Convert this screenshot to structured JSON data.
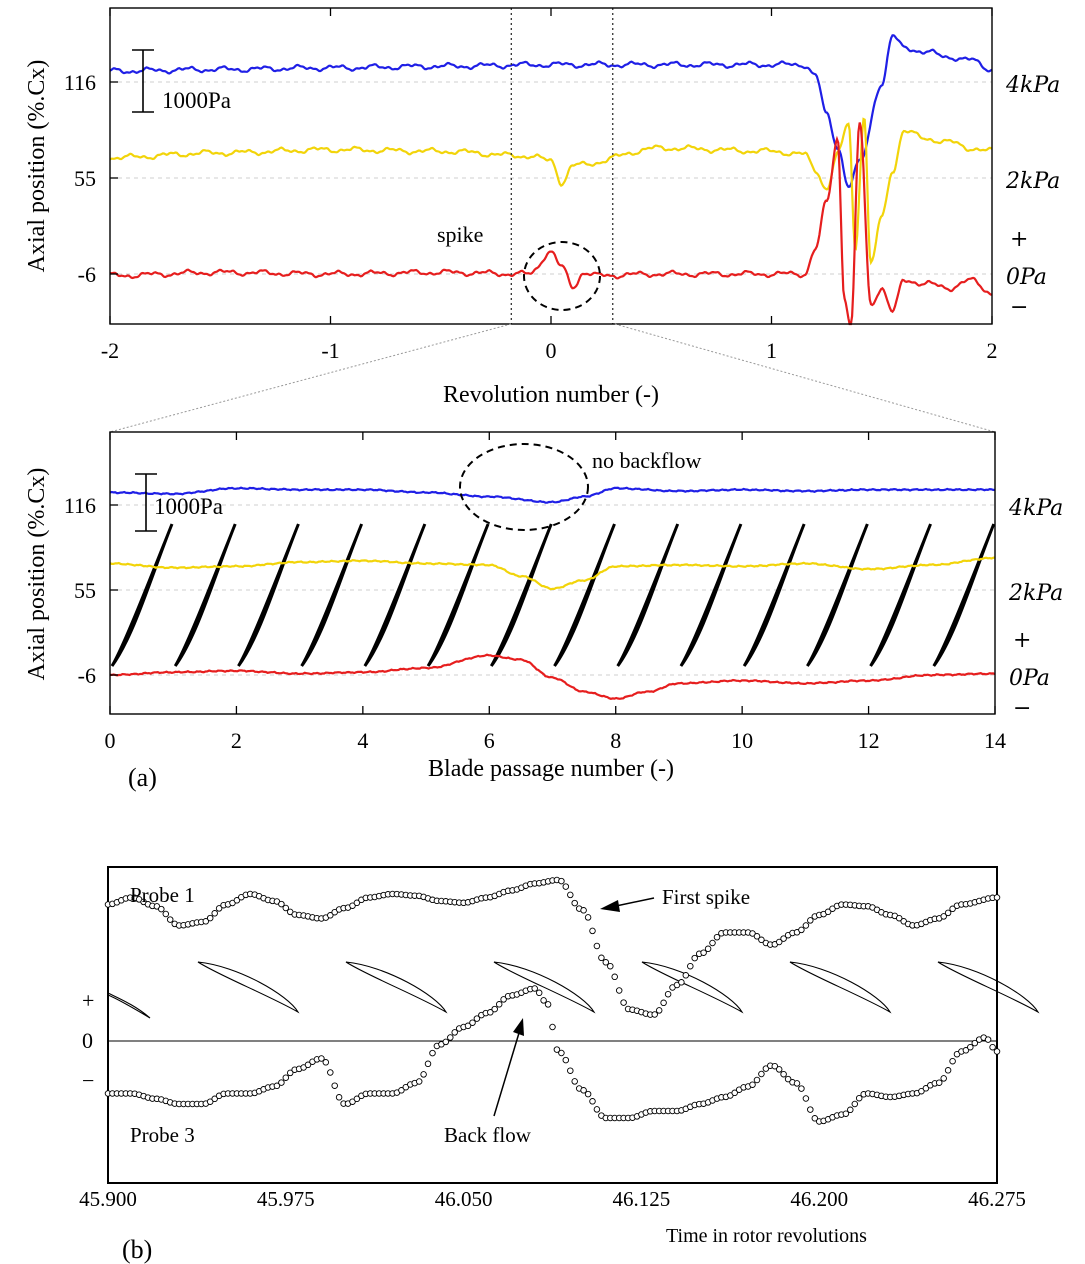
{
  "chart_data": [
    {
      "type": "line",
      "panel": "a-top",
      "xlabel": "Revolution number (-)",
      "ylabel": "Axial position (%.Cx)",
      "x_ticks": [
        "-2",
        "-1",
        "0",
        "1",
        "2"
      ],
      "xlim": [
        -2,
        2
      ],
      "y_ticks": [
        "116",
        "55",
        "-6"
      ],
      "y_tick_values": [
        116,
        55,
        -6
      ],
      "right_labels": [
        "4kPa",
        "2kPa",
        "+",
        "0Pa",
        "−"
      ],
      "scale_bar_label": "1000Pa",
      "dashed_lines_x": [
        -0.18,
        0.28
      ],
      "annotation": "spike",
      "series": [
        {
          "color": "#1f1fe6",
          "baseline": 116,
          "x": [
            -2,
            -1.5,
            -1,
            -0.5,
            0,
            0.5,
            1,
            1.15,
            1.2,
            1.25,
            1.3,
            1.35,
            1.4,
            1.5,
            1.55,
            1.6,
            1.7,
            1.8,
            1.9,
            2
          ],
          "y": [
            123,
            124,
            125,
            126,
            127,
            127,
            127,
            127,
            120,
            95,
            75,
            50,
            65,
            115,
            145,
            138,
            135,
            132,
            130,
            124
          ]
        },
        {
          "color": "#f2d40a",
          "baseline": 55,
          "x": [
            -2,
            -1.5,
            -1,
            -0.5,
            -0.1,
            0,
            0.05,
            0.1,
            0.5,
            1,
            1.15,
            1.2,
            1.25,
            1.3,
            1.35,
            1.38,
            1.42,
            1.45,
            1.5,
            1.55,
            1.6,
            1.7,
            1.8,
            1.9,
            2
          ],
          "y": [
            68,
            71,
            73,
            72,
            69,
            66,
            52,
            63,
            74,
            72,
            70,
            60,
            48,
            70,
            90,
            10,
            95,
            0,
            30,
            60,
            85,
            80,
            78,
            74,
            72
          ]
        },
        {
          "color": "#e61e1e",
          "baseline": -6,
          "x": [
            -2,
            -1.5,
            -1,
            -0.5,
            -0.1,
            0.0,
            0.05,
            0.1,
            0.15,
            0.2,
            0.5,
            1,
            1.15,
            1.2,
            1.25,
            1.3,
            1.33,
            1.36,
            1.4,
            1.45,
            1.5,
            1.55,
            1.6,
            1.7,
            1.8,
            1.9,
            2
          ],
          "y": [
            -7,
            -5,
            -6,
            -5,
            -6,
            8,
            -2,
            -14,
            -5,
            -7,
            -6,
            -6,
            -6,
            10,
            40,
            80,
            -20,
            -40,
            90,
            -25,
            -15,
            -30,
            -10,
            -12,
            -15,
            -10,
            -18
          ]
        }
      ]
    },
    {
      "type": "line",
      "panel": "a-bottom",
      "xlabel": "Blade passage number (-)",
      "ylabel": "Axial position (%.Cx)",
      "x_ticks": [
        "0",
        "2",
        "4",
        "6",
        "8",
        "10",
        "12",
        "14"
      ],
      "xlim": [
        0,
        14
      ],
      "y_ticks": [
        "116",
        "55",
        "-6"
      ],
      "y_tick_values": [
        116,
        55,
        -6
      ],
      "right_labels": [
        "4kPa",
        "2kPa",
        "+",
        "0Pa",
        "−"
      ],
      "scale_bar_label": "1000Pa",
      "annotation": "no backflow",
      "panel_label": "(a)",
      "series": [
        {
          "color": "#1f1fe6",
          "baseline": 116,
          "x": [
            0,
            1,
            2,
            3,
            4,
            5,
            6,
            7,
            7.5,
            8,
            9,
            10,
            11,
            12,
            13,
            14
          ],
          "y": [
            125,
            124,
            128,
            127,
            127,
            125,
            122,
            118,
            122,
            128,
            126,
            127,
            126,
            127,
            127,
            127
          ]
        },
        {
          "color": "#f2d40a",
          "baseline": 55,
          "x": [
            0,
            1,
            2,
            3,
            4,
            5,
            6,
            6.5,
            7,
            7.5,
            8,
            9,
            10,
            11,
            12,
            13,
            14
          ],
          "y": [
            74,
            71,
            72,
            75,
            76,
            74,
            73,
            65,
            56,
            62,
            72,
            73,
            72,
            74,
            70,
            73,
            78
          ]
        },
        {
          "color": "#e61e1e",
          "baseline": -6,
          "x": [
            0,
            1,
            2,
            3,
            4,
            5,
            6,
            6.5,
            7,
            7.5,
            8,
            8.5,
            9,
            10,
            11,
            12,
            13,
            14
          ],
          "y": [
            -6,
            -4,
            -3,
            -5,
            -4,
            -1,
            8,
            5,
            -8,
            -18,
            -23,
            -18,
            -12,
            -10,
            -12,
            -10,
            -6,
            -5
          ]
        }
      ]
    },
    {
      "type": "scatter",
      "panel": "b",
      "xlabel": "Time in rotor revolutions",
      "x_ticks": [
        "45.900",
        "45.975",
        "46.050",
        "46.125",
        "46.200",
        "46.275"
      ],
      "xlim": [
        45.9,
        46.275
      ],
      "y_labels": [
        "+",
        "0",
        "−"
      ],
      "panel_label": "(b)",
      "annotations": [
        "First spike",
        "Back flow"
      ],
      "series": [
        {
          "name": "Probe 1",
          "x": [
            45.9,
            45.91,
            45.92,
            45.93,
            45.94,
            45.95,
            45.96,
            45.97,
            45.98,
            45.99,
            46.0,
            46.01,
            46.02,
            46.03,
            46.04,
            46.05,
            46.06,
            46.07,
            46.08,
            46.09,
            46.1,
            46.11,
            46.12,
            46.13,
            46.14,
            46.15,
            46.16,
            46.17,
            46.18,
            46.19,
            46.2,
            46.21,
            46.22,
            46.23,
            46.24,
            46.25,
            46.26,
            46.275
          ],
          "y": [
            0.78,
            0.82,
            0.77,
            0.66,
            0.68,
            0.78,
            0.84,
            0.8,
            0.72,
            0.7,
            0.76,
            0.82,
            0.84,
            0.83,
            0.8,
            0.79,
            0.82,
            0.86,
            0.9,
            0.92,
            0.75,
            0.45,
            0.18,
            0.15,
            0.32,
            0.5,
            0.62,
            0.62,
            0.55,
            0.62,
            0.72,
            0.78,
            0.77,
            0.72,
            0.66,
            0.7,
            0.78,
            0.82
          ]
        },
        {
          "name": "Probe 3",
          "x": [
            45.9,
            45.91,
            45.92,
            45.93,
            45.94,
            45.95,
            45.96,
            45.97,
            45.98,
            45.99,
            46.0,
            46.01,
            46.02,
            46.03,
            46.04,
            46.05,
            46.06,
            46.07,
            46.08,
            46.085,
            46.09,
            46.1,
            46.11,
            46.12,
            46.13,
            46.14,
            46.15,
            46.16,
            46.17,
            46.18,
            46.19,
            46.2,
            46.21,
            46.22,
            46.23,
            46.24,
            46.25,
            46.26,
            46.27,
            46.275
          ],
          "y": [
            -0.3,
            -0.3,
            -0.33,
            -0.36,
            -0.36,
            -0.3,
            -0.3,
            -0.26,
            -0.16,
            -0.1,
            -0.36,
            -0.3,
            -0.3,
            -0.24,
            -0.02,
            0.08,
            0.16,
            0.26,
            0.3,
            0.22,
            -0.06,
            -0.28,
            -0.44,
            -0.44,
            -0.4,
            -0.4,
            -0.36,
            -0.32,
            -0.26,
            -0.14,
            -0.24,
            -0.46,
            -0.42,
            -0.3,
            -0.32,
            -0.3,
            -0.24,
            -0.06,
            0.02,
            -0.06
          ]
        }
      ]
    }
  ]
}
